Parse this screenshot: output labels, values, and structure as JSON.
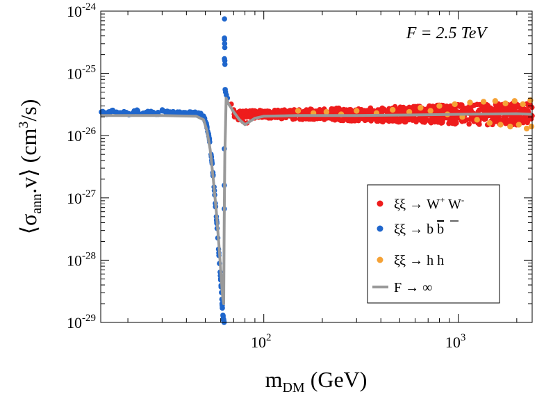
{
  "chart_data": {
    "type": "scatter",
    "title": "",
    "annotation": "F = 2.5 TeV",
    "xlabel": {
      "main": "m",
      "sub": "DM",
      "rest": " (GeV)"
    },
    "ylabel": {
      "open": "⟨σ",
      "sub": "ann",
      "mid": ".v⟩ (cm",
      "sup": "3",
      "rest": "/s)"
    },
    "x_scale": "log",
    "y_scale": "log",
    "xlim": [
      14.5,
      2400
    ],
    "ylim": [
      1e-29,
      1e-24
    ],
    "x_ticks": [
      {
        "value": 100,
        "base": "10",
        "exp": "2"
      },
      {
        "value": 1000,
        "base": "10",
        "exp": "3"
      }
    ],
    "y_ticks": [
      {
        "value": 1e-24,
        "base": "10",
        "exp": "-24"
      },
      {
        "value": 1e-25,
        "base": "10",
        "exp": "-25"
      },
      {
        "value": 1e-26,
        "base": "10",
        "exp": "-26"
      },
      {
        "value": 1e-27,
        "base": "10",
        "exp": "-27"
      },
      {
        "value": 1e-28,
        "base": "10",
        "exp": "-28"
      },
      {
        "value": 1e-29,
        "base": "10",
        "exp": "-29"
      }
    ],
    "legend_position": "bottom-right",
    "series": [
      {
        "name": "WW",
        "label": {
          "text": "ξξ → W",
          "sup1": "+",
          "mid": " W",
          "sup2": "-"
        },
        "color": "#ee1c1c",
        "kind": "scatter",
        "band": {
          "x_range": [
            70,
            2400
          ],
          "y_center": 2.2e-26
        },
        "points": [
          [
            68,
            3.2e-26
          ],
          [
            70,
            2.6e-26
          ],
          [
            72,
            2e-26
          ],
          [
            74,
            1.8e-26
          ],
          [
            78,
            1.7e-26
          ],
          [
            82,
            1.6e-26
          ],
          [
            90,
            2e-26
          ],
          [
            100,
            2.2e-26
          ],
          [
            130,
            2.3e-26
          ],
          [
            180,
            2.2e-26
          ],
          [
            250,
            2.4e-26
          ],
          [
            350,
            2.1e-26
          ],
          [
            500,
            2.3e-26
          ],
          [
            700,
            2.2e-26
          ],
          [
            1000,
            2.4e-26
          ],
          [
            1400,
            2.1e-26
          ],
          [
            1900,
            2.3e-26
          ],
          [
            2300,
            2.2e-26
          ]
        ]
      },
      {
        "name": "bb",
        "label": {
          "text": "ξξ → b ",
          "bar": "b"
        },
        "color": "#1f66cc",
        "kind": "scatter",
        "points": [
          [
            14.6,
            2.4e-26
          ],
          [
            15.5,
            2.2e-26
          ],
          [
            16.5,
            2.5e-26
          ],
          [
            17.5,
            2.3e-26
          ],
          [
            19,
            2.4e-26
          ],
          [
            20.5,
            2.2e-26
          ],
          [
            22,
            2.5e-26
          ],
          [
            24,
            2.3e-26
          ],
          [
            26,
            2.4e-26
          ],
          [
            28,
            2.2e-26
          ],
          [
            30,
            2.5e-26
          ],
          [
            33,
            2.3e-26
          ],
          [
            36,
            2.4e-26
          ],
          [
            39,
            2.3e-26
          ],
          [
            42,
            2.4e-26
          ],
          [
            45,
            2.3e-26
          ],
          [
            47.5,
            2.2e-26
          ],
          [
            49.5,
            1.9e-26
          ],
          [
            51,
            1.4e-26
          ],
          [
            52.5,
            9e-27
          ],
          [
            54,
            4e-27
          ],
          [
            55.5,
            1.5e-27
          ],
          [
            57,
            5e-28
          ],
          [
            58.5,
            1.5e-28
          ],
          [
            60,
            5e-29
          ],
          [
            61,
            2e-29
          ],
          [
            62,
            1.1e-29
          ],
          [
            62.5,
            1e-29
          ],
          [
            62.8,
            7.5e-25
          ],
          [
            62.8,
            3.5e-25
          ],
          [
            62.9,
            3e-25
          ],
          [
            63,
            2.6e-25
          ],
          [
            63,
            1.6e-25
          ],
          [
            63.1,
            1.4e-25
          ],
          [
            63.3,
            5.5e-26
          ],
          [
            63.6,
            5e-26
          ],
          [
            64.2,
            4.5e-26
          ],
          [
            65,
            4e-26
          ]
        ]
      },
      {
        "name": "hh",
        "label": {
          "text": "ξξ → h h"
        },
        "color": "#f5a236",
        "kind": "scatter",
        "points": [
          [
            150,
            2.5e-26
          ],
          [
            180,
            2.3e-26
          ],
          [
            210,
            2.4e-26
          ],
          [
            250,
            2.2e-26
          ],
          [
            300,
            2.5e-26
          ],
          [
            380,
            2.3e-26
          ],
          [
            460,
            2.6e-26
          ],
          [
            560,
            2.4e-26
          ],
          [
            640,
            2.8e-26
          ],
          [
            720,
            2.5e-26
          ],
          [
            800,
            3e-26
          ],
          [
            880,
            2.2e-26
          ],
          [
            960,
            3.2e-26
          ],
          [
            1050,
            2e-26
          ],
          [
            1150,
            3.4e-26
          ],
          [
            1250,
            1.8e-26
          ],
          [
            1350,
            3.5e-26
          ],
          [
            1450,
            1.6e-26
          ],
          [
            1550,
            3.6e-26
          ],
          [
            1650,
            1.5e-26
          ],
          [
            1750,
            3.3e-26
          ],
          [
            1850,
            1.4e-26
          ],
          [
            1950,
            3.6e-26
          ],
          [
            2050,
            1.5e-26
          ],
          [
            2150,
            3.2e-26
          ],
          [
            2250,
            1.3e-26
          ],
          [
            2350,
            3.7e-26
          ],
          [
            2380,
            1.4e-26
          ]
        ]
      },
      {
        "name": "Finf",
        "label": {
          "text": "F → ∞"
        },
        "color": "#999999",
        "kind": "line",
        "points": [
          [
            14.5,
            2.1e-26
          ],
          [
            30,
            2.1e-26
          ],
          [
            45,
            2.05e-26
          ],
          [
            49,
            1.8e-26
          ],
          [
            51,
            1.2e-26
          ],
          [
            53,
            6e-27
          ],
          [
            55,
            2e-27
          ],
          [
            57,
            6e-28
          ],
          [
            59,
            1.5e-28
          ],
          [
            60.5,
            5e-29
          ],
          [
            61.5,
            2.5e-29
          ],
          [
            62.2,
            2e-29
          ],
          [
            62.6,
            5e-28
          ],
          [
            63,
            5e-27
          ],
          [
            63.6,
            1.5e-26
          ],
          [
            64,
            4e-26
          ],
          [
            66,
            3.2e-26
          ],
          [
            70,
            2.4e-26
          ],
          [
            75,
            1.8e-26
          ],
          [
            80,
            1.5e-26
          ],
          [
            85,
            1.7e-26
          ],
          [
            90,
            1.9e-26
          ],
          [
            100,
            2.05e-26
          ],
          [
            150,
            2.1e-26
          ],
          [
            300,
            2.1e-26
          ],
          [
            600,
            2.15e-26
          ],
          [
            1000,
            2.2e-26
          ],
          [
            2000,
            2.25e-26
          ],
          [
            2400,
            2.2e-26
          ]
        ]
      }
    ]
  }
}
